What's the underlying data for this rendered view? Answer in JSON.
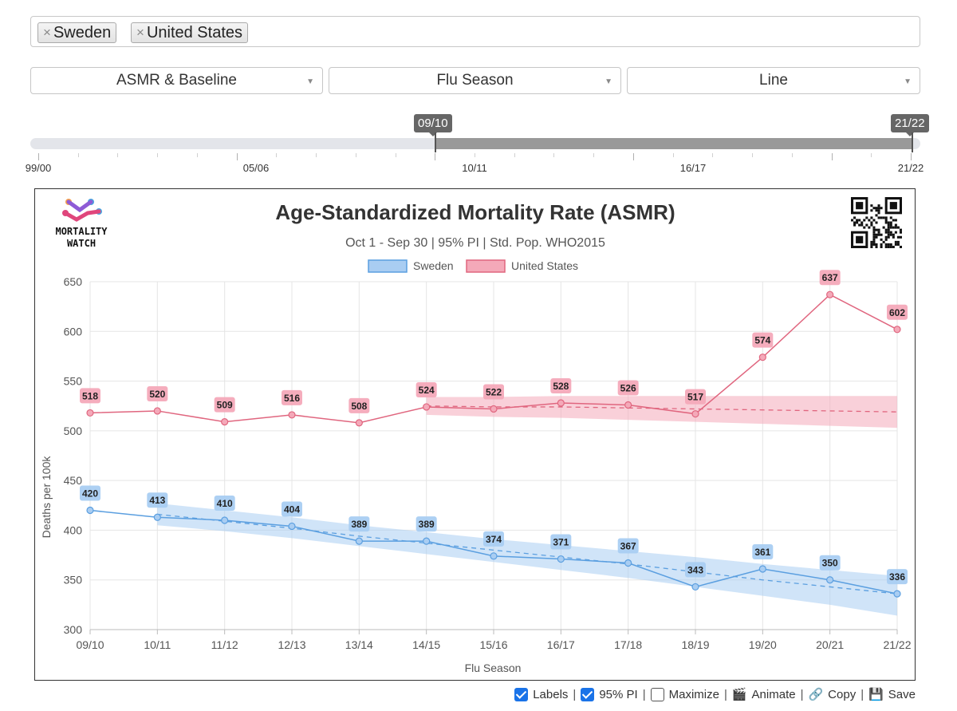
{
  "countries": {
    "chips": [
      {
        "label": "Sweden"
      },
      {
        "label": "United States"
      }
    ],
    "remove_glyph": "×"
  },
  "selects": {
    "metric": "ASMR & Baseline",
    "period": "Flu Season",
    "chart_type": "Line"
  },
  "range": {
    "start_label": "09/10",
    "end_label": "21/22",
    "axis_labels": [
      "99/00",
      "05/06",
      "10/11",
      "16/17",
      "21/22"
    ]
  },
  "branding": {
    "logo_line1": "MORTALITY",
    "logo_line2": "WATCH"
  },
  "footer": {
    "labels": "Labels",
    "pi": "95% PI",
    "maximize": "Maximize",
    "animate": "Animate",
    "copy": "Copy",
    "save": "Save",
    "labels_checked": true,
    "pi_checked": true,
    "maximize_checked": false
  },
  "colors": {
    "sweden": "#5b9fe0",
    "sweden_fill": "#a9cdf2",
    "us": "#e0667f",
    "us_fill": "#f4a9b9"
  },
  "chart_data": {
    "type": "line",
    "title": "Age-Standardized Mortality Rate (ASMR)",
    "subtitle": "Oct 1 - Sep 30 | 95% PI | Std. Pop. WHO2015",
    "xlabel": "Flu Season",
    "ylabel": "Deaths per 100k",
    "ylim": [
      300,
      650
    ],
    "yticks": [
      300,
      350,
      400,
      450,
      500,
      550,
      600,
      650
    ],
    "grid": true,
    "legend": "top-center",
    "categories": [
      "09/10",
      "10/11",
      "11/12",
      "12/13",
      "13/14",
      "14/15",
      "15/16",
      "16/17",
      "17/18",
      "18/19",
      "19/20",
      "20/21",
      "21/22"
    ],
    "series": [
      {
        "name": "Sweden",
        "values": [
          420,
          413,
          410,
          404,
          389,
          389,
          374,
          371,
          367,
          343,
          361,
          350,
          336
        ],
        "baseline": [
          null,
          416,
          409,
          402,
          394,
          387,
          380,
          373,
          366,
          358,
          350,
          343,
          336
        ],
        "pi_lower": [
          null,
          405,
          399,
          392,
          384,
          376,
          368,
          360,
          352,
          343,
          334,
          325,
          314
        ],
        "pi_upper": [
          null,
          427,
          420,
          413,
          405,
          398,
          391,
          385,
          379,
          373,
          366,
          360,
          354
        ]
      },
      {
        "name": "United States",
        "values": [
          518,
          520,
          509,
          516,
          508,
          524,
          522,
          528,
          526,
          517,
          574,
          637,
          602
        ],
        "baseline": [
          null,
          null,
          null,
          null,
          null,
          525,
          524,
          524,
          523,
          522,
          521,
          520,
          519
        ],
        "pi_lower": [
          null,
          null,
          null,
          null,
          null,
          516,
          514,
          513,
          511,
          509,
          507,
          505,
          503
        ],
        "pi_upper": [
          null,
          null,
          null,
          null,
          null,
          534,
          534,
          535,
          535,
          535,
          535,
          535,
          535
        ]
      }
    ]
  }
}
